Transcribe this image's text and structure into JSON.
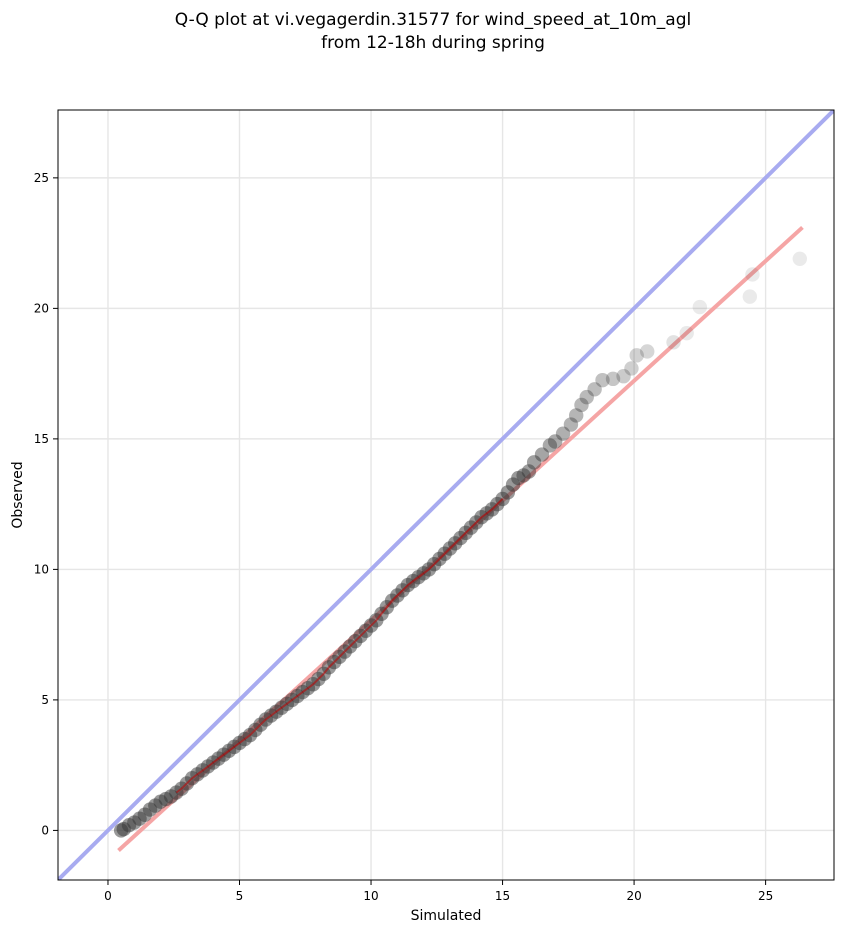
{
  "chart_data": {
    "type": "scatter",
    "title_line1": "Q-Q plot at vi.vegagerdin.31577 for wind_speed_at_10m_agl",
    "title_line2": "from 12-18h during spring",
    "xlabel": "Simulated",
    "ylabel": "Observed",
    "xlim": [
      -1.9,
      27.6
    ],
    "ylim": [
      -1.9,
      27.6
    ],
    "xticks": [
      0,
      5,
      10,
      15,
      20,
      25
    ],
    "yticks": [
      0,
      5,
      10,
      15,
      20,
      25
    ],
    "xtick_labels": [
      "0",
      "5",
      "10",
      "15",
      "20",
      "25"
    ],
    "ytick_labels": [
      "0",
      "5",
      "10",
      "15",
      "20",
      "25"
    ],
    "grid": true,
    "reference_line": {
      "x": [
        -1.9,
        27.6
      ],
      "y": [
        -1.9,
        27.6
      ],
      "color": "#a8abf0"
    },
    "fit_line": {
      "x": [
        0.4,
        26.4
      ],
      "y": [
        -0.77,
        23.1
      ],
      "color": "#f5a5a5"
    },
    "colors": {
      "points": "#333333",
      "dense_segment": "#c00000"
    },
    "series": [
      {
        "values": [
          [
            0.5,
            0.0
          ],
          [
            0.6,
            0.05
          ],
          [
            0.8,
            0.2
          ],
          [
            1.0,
            0.3
          ],
          [
            1.2,
            0.45
          ],
          [
            1.4,
            0.6
          ],
          [
            1.6,
            0.8
          ],
          [
            1.8,
            0.95
          ],
          [
            2.0,
            1.1
          ],
          [
            2.2,
            1.2
          ],
          [
            2.4,
            1.3
          ],
          [
            2.6,
            1.45
          ],
          [
            2.8,
            1.6
          ],
          [
            3.0,
            1.8
          ],
          [
            3.2,
            2.0
          ],
          [
            3.4,
            2.15
          ],
          [
            3.6,
            2.3
          ],
          [
            3.8,
            2.45
          ],
          [
            4.0,
            2.6
          ],
          [
            4.2,
            2.75
          ],
          [
            4.4,
            2.9
          ],
          [
            4.6,
            3.05
          ],
          [
            4.8,
            3.2
          ],
          [
            5.0,
            3.35
          ],
          [
            5.2,
            3.5
          ],
          [
            5.4,
            3.65
          ],
          [
            5.6,
            3.85
          ],
          [
            5.8,
            4.05
          ],
          [
            6.0,
            4.25
          ],
          [
            6.2,
            4.4
          ],
          [
            6.4,
            4.55
          ],
          [
            6.6,
            4.7
          ],
          [
            6.8,
            4.85
          ],
          [
            7.0,
            5.0
          ],
          [
            7.2,
            5.15
          ],
          [
            7.4,
            5.3
          ],
          [
            7.6,
            5.45
          ],
          [
            7.8,
            5.6
          ],
          [
            8.0,
            5.8
          ],
          [
            8.2,
            6.0
          ],
          [
            8.4,
            6.25
          ],
          [
            8.6,
            6.45
          ],
          [
            8.8,
            6.65
          ],
          [
            9.0,
            6.85
          ],
          [
            9.2,
            7.05
          ],
          [
            9.4,
            7.25
          ],
          [
            9.6,
            7.45
          ],
          [
            9.8,
            7.65
          ],
          [
            10.0,
            7.85
          ],
          [
            10.2,
            8.05
          ],
          [
            10.4,
            8.3
          ],
          [
            10.6,
            8.55
          ],
          [
            10.8,
            8.8
          ],
          [
            11.0,
            9.0
          ],
          [
            11.2,
            9.2
          ],
          [
            11.4,
            9.4
          ],
          [
            11.6,
            9.55
          ],
          [
            11.8,
            9.7
          ],
          [
            12.0,
            9.85
          ],
          [
            12.2,
            10.0
          ],
          [
            12.4,
            10.2
          ],
          [
            12.6,
            10.4
          ],
          [
            12.8,
            10.6
          ],
          [
            13.0,
            10.8
          ],
          [
            13.2,
            11.0
          ],
          [
            13.4,
            11.2
          ],
          [
            13.6,
            11.4
          ],
          [
            13.8,
            11.6
          ],
          [
            14.0,
            11.8
          ],
          [
            14.2,
            12.0
          ],
          [
            14.4,
            12.15
          ],
          [
            14.6,
            12.3
          ],
          [
            14.8,
            12.5
          ],
          [
            15.0,
            12.7
          ],
          [
            15.2,
            12.95
          ],
          [
            15.4,
            13.25
          ],
          [
            15.6,
            13.5
          ],
          [
            15.8,
            13.6
          ],
          [
            16.0,
            13.75
          ],
          [
            16.2,
            14.1
          ],
          [
            16.5,
            14.4
          ],
          [
            16.8,
            14.75
          ],
          [
            17.0,
            14.9
          ],
          [
            17.3,
            15.2
          ],
          [
            17.6,
            15.55
          ],
          [
            17.8,
            15.9
          ],
          [
            18.0,
            16.3
          ],
          [
            18.2,
            16.6
          ],
          [
            18.5,
            16.9
          ],
          [
            18.8,
            17.25
          ],
          [
            19.2,
            17.3
          ],
          [
            19.6,
            17.4
          ],
          [
            19.9,
            17.7
          ],
          [
            20.1,
            18.2
          ],
          [
            20.5,
            18.35
          ],
          [
            21.5,
            18.7
          ],
          [
            22.0,
            19.05
          ],
          [
            22.5,
            20.05
          ],
          [
            24.4,
            20.45
          ],
          [
            24.5,
            21.3
          ],
          [
            26.3,
            21.9
          ]
        ]
      }
    ]
  }
}
